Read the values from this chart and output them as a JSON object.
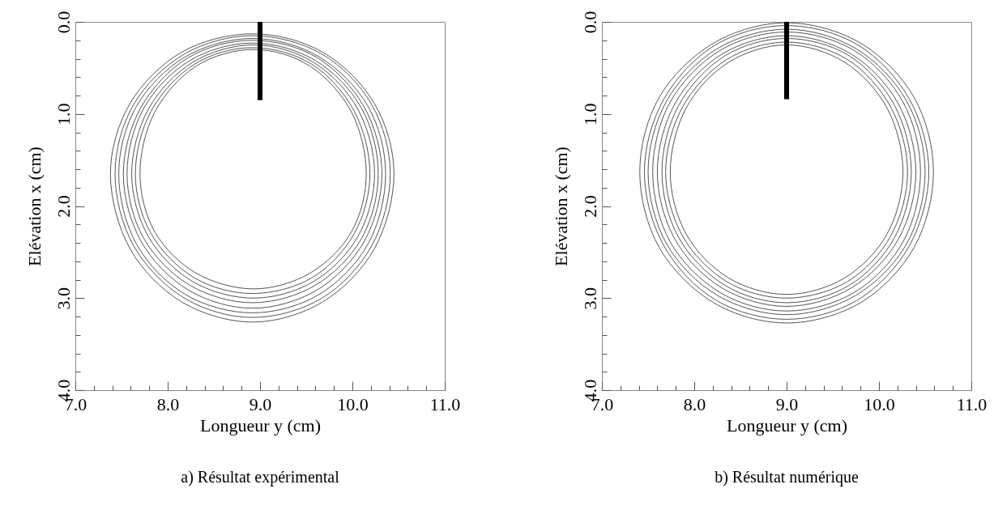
{
  "chart_data": [
    {
      "type": "bar",
      "xlabel": "Longueur y (cm)",
      "ylabel": "Elévation x (cm)",
      "annotations": [
        "a) Résultat expérimental"
      ],
      "xlim": [
        7,
        11
      ],
      "ylim": [
        4,
        0
      ],
      "xticks": [
        {
          "value": 7,
          "label": "7.0"
        },
        {
          "value": 7.2,
          "label": null
        },
        {
          "value": 7.4,
          "label": null
        },
        {
          "value": 7.6,
          "label": null
        },
        {
          "value": 7.8,
          "label": null
        },
        {
          "value": 8,
          "label": "8.0"
        },
        {
          "value": 8.2,
          "label": null
        },
        {
          "value": 8.4,
          "label": null
        },
        {
          "value": 8.6,
          "label": null
        },
        {
          "value": 8.8,
          "label": null
        },
        {
          "value": 9,
          "label": "9.0"
        },
        {
          "value": 9.2,
          "label": null
        },
        {
          "value": 9.4,
          "label": null
        },
        {
          "value": 9.6,
          "label": null
        },
        {
          "value": 9.8,
          "label": null
        },
        {
          "value": 10,
          "label": "10.0"
        },
        {
          "value": 10.2,
          "label": null
        },
        {
          "value": 10.4,
          "label": null
        },
        {
          "value": 10.6,
          "label": null
        },
        {
          "value": 10.8,
          "label": null
        },
        {
          "value": 11,
          "label": "11.0"
        }
      ],
      "yticks": [
        {
          "value": 0,
          "label": "0.0"
        },
        {
          "value": 0.2,
          "label": null
        },
        {
          "value": 0.4,
          "label": null
        },
        {
          "value": 0.6,
          "label": null
        },
        {
          "value": 0.8,
          "label": null
        },
        {
          "value": 1,
          "label": "1.0"
        },
        {
          "value": 1.2,
          "label": null
        },
        {
          "value": 1.4,
          "label": null
        },
        {
          "value": 1.6,
          "label": null
        },
        {
          "value": 1.8,
          "label": null
        },
        {
          "value": 2,
          "label": "2.0"
        },
        {
          "value": 2.2,
          "label": null
        },
        {
          "value": 2.4,
          "label": null
        },
        {
          "value": 2.6,
          "label": null
        },
        {
          "value": 2.8,
          "label": null
        },
        {
          "value": 3,
          "label": "3.0"
        },
        {
          "value": 3.2,
          "label": null
        },
        {
          "value": 3.4,
          "label": null
        },
        {
          "value": 3.6,
          "label": null
        },
        {
          "value": 3.8,
          "label": null
        },
        {
          "value": 4,
          "label": "4.0"
        }
      ],
      "series": [
        {
          "color": "#000000",
          "x": [
            9.0
          ],
          "base": [
            0
          ],
          "values": [
            0.85
          ]
        }
      ]
    },
    {
      "type": "bar",
      "xlabel": "Longueur y (cm)",
      "ylabel": "Elévation x (cm)",
      "annotations": [
        "b) Résultat numérique"
      ],
      "xlim": [
        7,
        11
      ],
      "ylim": [
        4,
        0
      ],
      "xticks": [
        {
          "value": 7,
          "label": "7.0"
        },
        {
          "value": 7.2,
          "label": null
        },
        {
          "value": 7.4,
          "label": null
        },
        {
          "value": 7.6,
          "label": null
        },
        {
          "value": 7.8,
          "label": null
        },
        {
          "value": 8,
          "label": "8.0"
        },
        {
          "value": 8.2,
          "label": null
        },
        {
          "value": 8.4,
          "label": null
        },
        {
          "value": 8.6,
          "label": null
        },
        {
          "value": 8.8,
          "label": null
        },
        {
          "value": 9,
          "label": "9.0"
        },
        {
          "value": 9.2,
          "label": null
        },
        {
          "value": 9.4,
          "label": null
        },
        {
          "value": 9.6,
          "label": null
        },
        {
          "value": 9.8,
          "label": null
        },
        {
          "value": 10,
          "label": "10.0"
        },
        {
          "value": 10.2,
          "label": null
        },
        {
          "value": 10.4,
          "label": null
        },
        {
          "value": 10.6,
          "label": null
        },
        {
          "value": 10.8,
          "label": null
        },
        {
          "value": 11,
          "label": "11.0"
        }
      ],
      "yticks": [
        {
          "value": 0,
          "label": "0.0"
        },
        {
          "value": 0.2,
          "label": null
        },
        {
          "value": 0.4,
          "label": null
        },
        {
          "value": 0.6,
          "label": null
        },
        {
          "value": 0.8,
          "label": null
        },
        {
          "value": 1,
          "label": "1.0"
        },
        {
          "value": 1.2,
          "label": null
        },
        {
          "value": 1.4,
          "label": null
        },
        {
          "value": 1.6,
          "label": null
        },
        {
          "value": 1.8,
          "label": null
        },
        {
          "value": 2,
          "label": "2.0"
        },
        {
          "value": 2.2,
          "label": null
        },
        {
          "value": 2.4,
          "label": null
        },
        {
          "value": 2.6,
          "label": null
        },
        {
          "value": 2.8,
          "label": null
        },
        {
          "value": 3,
          "label": "3.0"
        },
        {
          "value": 3.2,
          "label": null
        },
        {
          "value": 3.4,
          "label": null
        },
        {
          "value": 3.6,
          "label": null
        },
        {
          "value": 3.8,
          "label": null
        },
        {
          "value": 4,
          "label": "4.0"
        }
      ],
      "series": [
        {
          "color": "#000000",
          "x": [
            9.0
          ],
          "base": [
            0
          ],
          "values": [
            0.84
          ]
        }
      ]
    }
  ]
}
